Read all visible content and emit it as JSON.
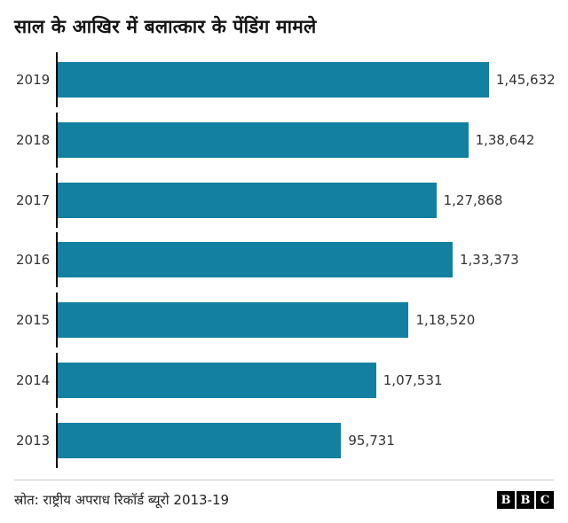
{
  "title": "साल के आखिर में बलात्कार के पेंडिंग मामले",
  "source": "स्रोत: राष्ट्रीय अपराध रिकॉर्ड ब्यूरो 2013-19",
  "logo": {
    "letters": [
      "B",
      "B",
      "C"
    ]
  },
  "colors": {
    "bar": "#1380a1",
    "axis": "#000000",
    "text": "#333333"
  },
  "chart_data": {
    "type": "bar",
    "orientation": "horizontal",
    "title": "साल के आखिर में बलात्कार के पेंडिंग मामले",
    "categories": [
      "2019",
      "2018",
      "2017",
      "2016",
      "2015",
      "2014",
      "2013"
    ],
    "values": [
      145632,
      138642,
      127868,
      133373,
      118520,
      107531,
      95731
    ],
    "value_labels": [
      "1,45,632",
      "1,38,642",
      "1,27,868",
      "1,33,373",
      "1,18,520",
      "1,07,531",
      "95,731"
    ],
    "xlim": [
      0,
      150000
    ],
    "grid": false,
    "legend": "none",
    "source": "स्रोत: राष्ट्रीय अपराध रिकॉर्ड ब्यूरो 2013-19"
  }
}
